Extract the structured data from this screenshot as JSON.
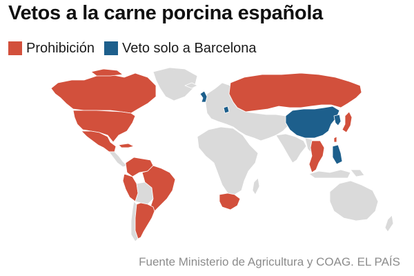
{
  "title": "Vetos a la carne porcina española",
  "legend": [
    {
      "label": "Prohibición",
      "color": "#d2503c"
    },
    {
      "label": "Veto solo a Barcelona",
      "color": "#1d5f8c"
    }
  ],
  "source": "Fuente Ministerio de Agricultura y COAG. EL PAÍS",
  "map_colors": {
    "no_veto": "#dadada",
    "ban": "#d2503c",
    "barcelona_only": "#1d5f8c",
    "border": "#ffffff"
  },
  "regions": {
    "ban": [
      "Canadá",
      "Estados Unidos",
      "México",
      "Cuba",
      "Colombia",
      "Venezuela",
      "Ecuador",
      "Perú",
      "Brasil",
      "Argentina",
      "Uruguay",
      "Rusia",
      "Japón",
      "Corea del Sur",
      "Tailandia",
      "Vietnam",
      "Malasia",
      "Taiwán",
      "Sudáfrica"
    ],
    "barcelona_only": [
      "China",
      "Reino Unido",
      "Filipinas",
      "Serbia",
      "Corea del Norte"
    ]
  }
}
